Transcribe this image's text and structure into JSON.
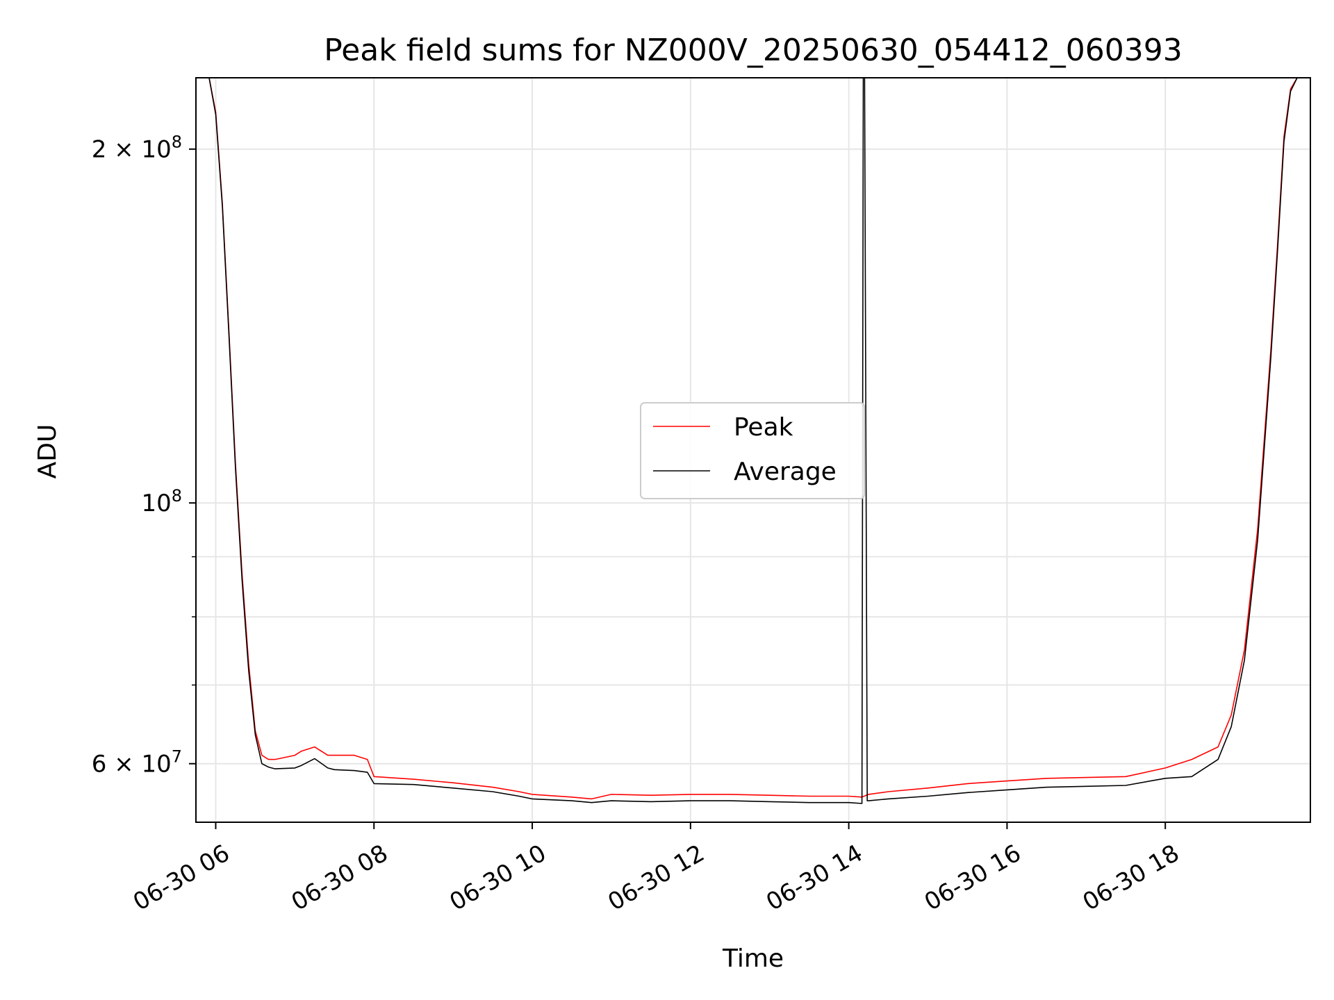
{
  "chart_data": {
    "type": "line",
    "title": "Peak field sums for NZ000V_20250630_054412_060393",
    "xlabel": "Time",
    "ylabel": "ADU",
    "yscale": "log",
    "ylim": [
      53500000,
      230000000
    ],
    "xlim": [
      "06-30 05:45",
      "06-30 19:50"
    ],
    "grid": true,
    "legend_position": "center",
    "x_ticks": [
      {
        "t": "06-30 06:00",
        "label": "06-30 06"
      },
      {
        "t": "06-30 08:00",
        "label": "06-30 08"
      },
      {
        "t": "06-30 10:00",
        "label": "06-30 10"
      },
      {
        "t": "06-30 12:00",
        "label": "06-30 12"
      },
      {
        "t": "06-30 14:00",
        "label": "06-30 14"
      },
      {
        "t": "06-30 16:00",
        "label": "06-30 16"
      },
      {
        "t": "06-30 18:00",
        "label": "06-30 18"
      }
    ],
    "y_ticks": [
      {
        "v": 200000000,
        "label_base": "2 × 10",
        "label_exp": "8"
      },
      {
        "v": 100000000,
        "label_base": "10",
        "label_exp": "8"
      },
      {
        "v": 60000000,
        "label_base": "6 × 10",
        "label_exp": "7"
      }
    ],
    "y_minor_ticks": [
      70000000,
      80000000,
      90000000
    ],
    "series": [
      {
        "name": "Peak",
        "color": "#ff0000",
        "x": [
          "06-30 05:45",
          "06-30 05:55",
          "06-30 06:00",
          "06-30 06:05",
          "06-30 06:10",
          "06-30 06:15",
          "06-30 06:20",
          "06-30 06:25",
          "06-30 06:30",
          "06-30 06:35",
          "06-30 06:40",
          "06-30 06:45",
          "06-30 07:00",
          "06-30 07:05",
          "06-30 07:15",
          "06-30 07:25",
          "06-30 07:30",
          "06-30 07:45",
          "06-30 07:55",
          "06-30 08:00",
          "06-30 08:30",
          "06-30 09:00",
          "06-30 09:30",
          "06-30 09:50",
          "06-30 10:00",
          "06-30 10:30",
          "06-30 10:45",
          "06-30 11:00",
          "06-30 11:30",
          "06-30 12:00",
          "06-30 12:30",
          "06-30 13:00",
          "06-30 13:30",
          "06-30 14:00",
          "06-30 14:10",
          "06-30 14:15",
          "06-30 14:30",
          "06-30 15:00",
          "06-30 15:30",
          "06-30 16:00",
          "06-30 16:30",
          "06-30 17:00",
          "06-30 17:30",
          "06-30 18:00",
          "06-30 18:20",
          "06-30 18:40",
          "06-30 18:50",
          "06-30 19:00",
          "06-30 19:10",
          "06-30 19:20",
          "06-30 19:25",
          "06-30 19:30",
          "06-30 19:35",
          "06-30 19:40",
          "06-30 19:50"
        ],
        "y": [
          230000000,
          230000000,
          215000000,
          180000000,
          140000000,
          108000000,
          87000000,
          73000000,
          64000000,
          61000000,
          60500000,
          60500000,
          61000000,
          61500000,
          62000000,
          61000000,
          61000000,
          61000000,
          60500000,
          58500000,
          58200000,
          57800000,
          57300000,
          56800000,
          56500000,
          56200000,
          56000000,
          56500000,
          56400000,
          56500000,
          56500000,
          56400000,
          56300000,
          56300000,
          56200000,
          56500000,
          56800000,
          57200000,
          57700000,
          58000000,
          58300000,
          58400000,
          58500000,
          59500000,
          60500000,
          62000000,
          66000000,
          75000000,
          95000000,
          135000000,
          165000000,
          205000000,
          225000000,
          230000000,
          230000000
        ]
      },
      {
        "name": "Average",
        "color": "#000000",
        "x": [
          "06-30 05:45",
          "06-30 05:55",
          "06-30 06:00",
          "06-30 06:05",
          "06-30 06:10",
          "06-30 06:15",
          "06-30 06:20",
          "06-30 06:25",
          "06-30 06:30",
          "06-30 06:35",
          "06-30 06:40",
          "06-30 06:45",
          "06-30 07:00",
          "06-30 07:05",
          "06-30 07:15",
          "06-30 07:25",
          "06-30 07:30",
          "06-30 07:45",
          "06-30 07:55",
          "06-30 08:00",
          "06-30 08:30",
          "06-30 09:00",
          "06-30 09:30",
          "06-30 09:50",
          "06-30 10:00",
          "06-30 10:30",
          "06-30 10:45",
          "06-30 11:00",
          "06-30 11:30",
          "06-30 12:00",
          "06-30 12:30",
          "06-30 13:00",
          "06-30 13:30",
          "06-30 14:00",
          "06-30 14:10",
          "06-30 14:11",
          "06-30 14:12",
          "06-30 14:14",
          "06-30 14:15",
          "06-30 14:30",
          "06-30 15:00",
          "06-30 15:30",
          "06-30 16:00",
          "06-30 16:30",
          "06-30 17:00",
          "06-30 17:30",
          "06-30 18:00",
          "06-30 18:20",
          "06-30 18:40",
          "06-30 18:50",
          "06-30 19:00",
          "06-30 19:10",
          "06-30 19:20",
          "06-30 19:25",
          "06-30 19:30",
          "06-30 19:35",
          "06-30 19:40",
          "06-30 19:50"
        ],
        "y": [
          230000000,
          230000000,
          214000000,
          179000000,
          139000000,
          107000000,
          86000000,
          72000000,
          63500000,
          60000000,
          59600000,
          59400000,
          59500000,
          59800000,
          60600000,
          59500000,
          59300000,
          59200000,
          59000000,
          57700000,
          57600000,
          57200000,
          56800000,
          56300000,
          56000000,
          55800000,
          55600000,
          55800000,
          55700000,
          55800000,
          55800000,
          55700000,
          55600000,
          55600000,
          55500000,
          230000000,
          230000000,
          55800000,
          55800000,
          56000000,
          56300000,
          56700000,
          57000000,
          57300000,
          57400000,
          57500000,
          58300000,
          58500000,
          60500000,
          64500000,
          73500000,
          93000000,
          133000000,
          163000000,
          203000000,
          224000000,
          230000000,
          230000000
        ]
      }
    ]
  }
}
